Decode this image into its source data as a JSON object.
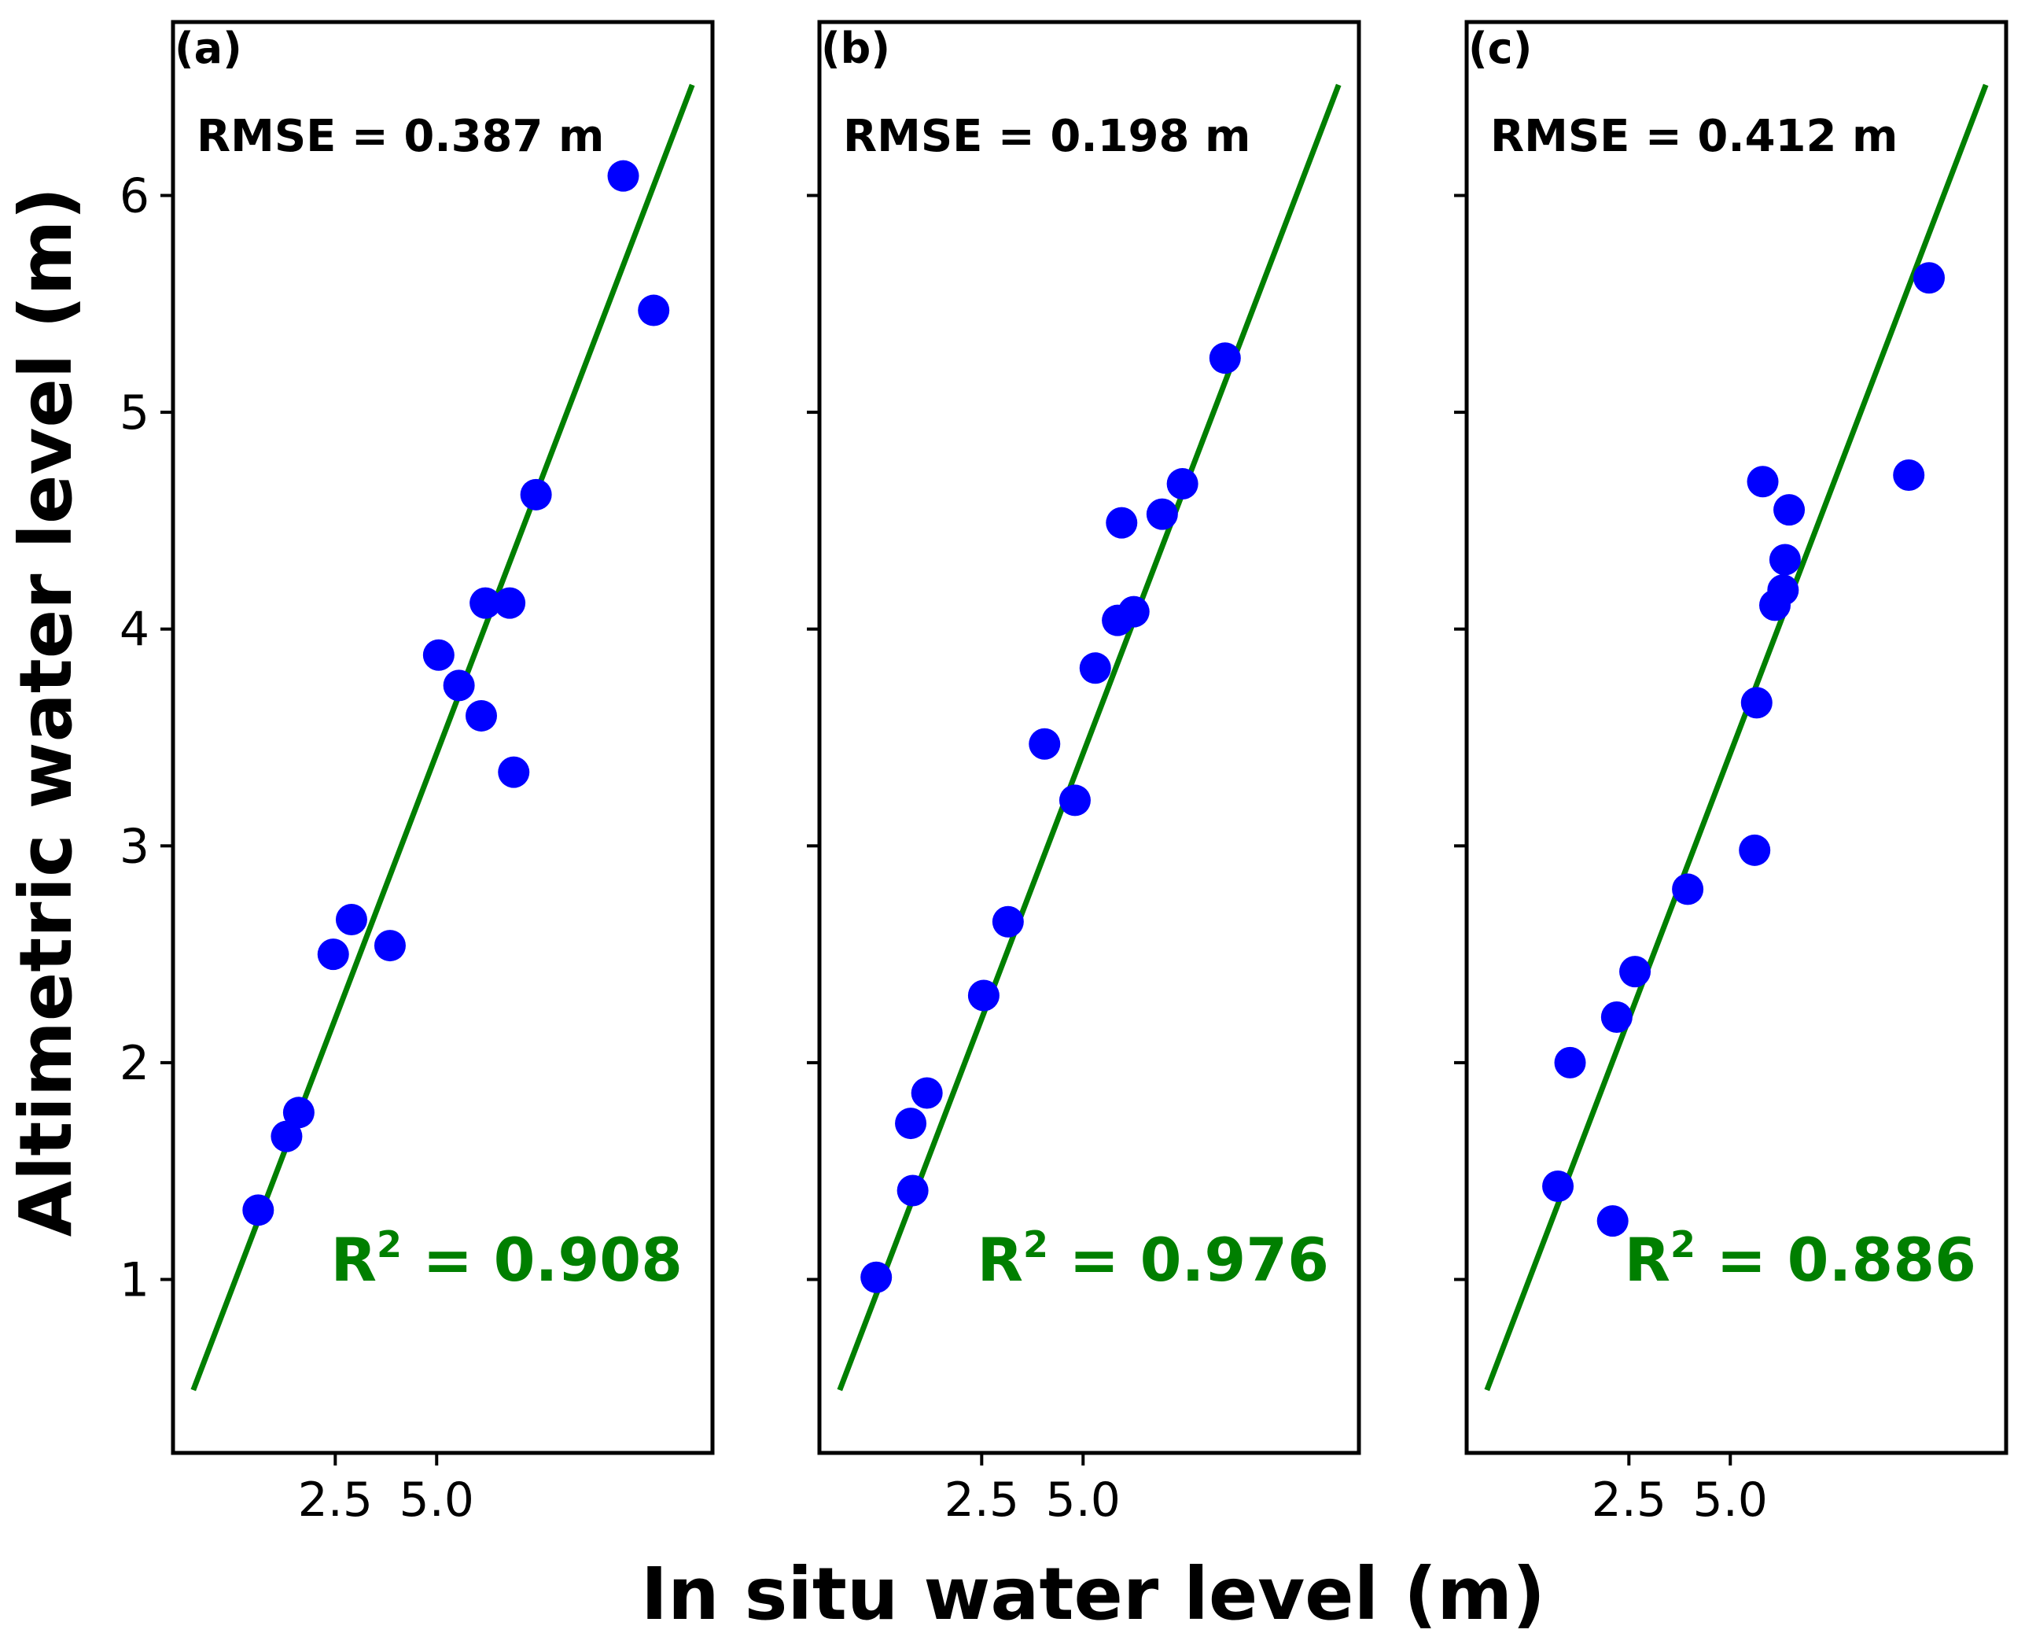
{
  "chart_data": [
    {
      "type": "scatter",
      "panel_label": "(a)",
      "rmse_label": "RMSE = 0.387 m",
      "r2_prefix": "R",
      "r2_sup": "2",
      "r2_value": " = 0.908",
      "xlim": [
        -1.5,
        11.8
      ],
      "ylim": [
        0.2,
        6.8
      ],
      "xticks": [
        2.5,
        5.0
      ],
      "xtick_labels": [
        "2.5",
        "5.0"
      ],
      "yticks": [
        1,
        2,
        3,
        4,
        5,
        6
      ],
      "ytick_labels": [
        "1",
        "2",
        "3",
        "4",
        "5",
        "6"
      ],
      "fit_line": {
        "x": [
          -1.0,
          11.3
        ],
        "y": [
          0.49,
          6.51
        ]
      },
      "points": [
        {
          "x": 0.6,
          "y": 1.32
        },
        {
          "x": 1.3,
          "y": 1.66
        },
        {
          "x": 1.6,
          "y": 1.77
        },
        {
          "x": 2.45,
          "y": 2.5
        },
        {
          "x": 2.9,
          "y": 2.66
        },
        {
          "x": 3.85,
          "y": 2.54
        },
        {
          "x": 5.05,
          "y": 3.88
        },
        {
          "x": 5.55,
          "y": 3.74
        },
        {
          "x": 6.1,
          "y": 3.6
        },
        {
          "x": 6.2,
          "y": 4.12
        },
        {
          "x": 6.8,
          "y": 4.12
        },
        {
          "x": 6.9,
          "y": 3.34
        },
        {
          "x": 7.45,
          "y": 4.62
        },
        {
          "x": 9.6,
          "y": 6.09
        },
        {
          "x": 10.35,
          "y": 5.47
        }
      ]
    },
    {
      "type": "scatter",
      "panel_label": "(b)",
      "rmse_label": "RMSE = 0.198 m",
      "r2_prefix": "R",
      "r2_sup": "2",
      "r2_value": " = 0.976",
      "xlim": [
        -1.5,
        11.8
      ],
      "ylim": [
        0.2,
        6.8
      ],
      "xticks": [
        2.5,
        5.0
      ],
      "xtick_labels": [
        "2.5",
        "5.0"
      ],
      "yticks": [
        1,
        2,
        3,
        4,
        5,
        6
      ],
      "ytick_labels": [],
      "fit_line": {
        "x": [
          -1.0,
          11.3
        ],
        "y": [
          0.49,
          6.51
        ]
      },
      "points": [
        {
          "x": -0.1,
          "y": 1.01
        },
        {
          "x": 0.8,
          "y": 1.41
        },
        {
          "x": 0.75,
          "y": 1.72
        },
        {
          "x": 1.15,
          "y": 1.86
        },
        {
          "x": 2.55,
          "y": 2.31
        },
        {
          "x": 3.15,
          "y": 2.65
        },
        {
          "x": 4.05,
          "y": 3.47
        },
        {
          "x": 4.8,
          "y": 3.21
        },
        {
          "x": 5.3,
          "y": 3.82
        },
        {
          "x": 5.85,
          "y": 4.04
        },
        {
          "x": 6.25,
          "y": 4.08
        },
        {
          "x": 5.95,
          "y": 4.49
        },
        {
          "x": 6.95,
          "y": 4.53
        },
        {
          "x": 7.45,
          "y": 4.67
        },
        {
          "x": 8.5,
          "y": 5.25
        }
      ]
    },
    {
      "type": "scatter",
      "panel_label": "(c)",
      "rmse_label": "RMSE = 0.412 m",
      "r2_prefix": "R",
      "r2_sup": "2",
      "r2_value": " = 0.886",
      "xlim": [
        -1.5,
        11.8
      ],
      "ylim": [
        0.2,
        6.8
      ],
      "xticks": [
        2.5,
        5.0
      ],
      "xtick_labels": [
        "2.5",
        "5.0"
      ],
      "yticks": [
        1,
        2,
        3,
        4,
        5,
        6
      ],
      "ytick_labels": [],
      "fit_line": {
        "x": [
          -1.0,
          11.3
        ],
        "y": [
          0.49,
          6.51
        ]
      },
      "points": [
        {
          "x": 0.75,
          "y": 1.43
        },
        {
          "x": 1.05,
          "y": 2.0
        },
        {
          "x": 2.1,
          "y": 1.27
        },
        {
          "x": 2.2,
          "y": 2.21
        },
        {
          "x": 2.65,
          "y": 2.42
        },
        {
          "x": 3.95,
          "y": 2.8
        },
        {
          "x": 5.6,
          "y": 2.98
        },
        {
          "x": 5.65,
          "y": 3.66
        },
        {
          "x": 5.8,
          "y": 4.68
        },
        {
          "x": 6.1,
          "y": 4.11
        },
        {
          "x": 6.3,
          "y": 4.18
        },
        {
          "x": 6.35,
          "y": 4.32
        },
        {
          "x": 6.45,
          "y": 4.55
        },
        {
          "x": 9.4,
          "y": 4.71
        },
        {
          "x": 9.9,
          "y": 5.62
        }
      ]
    }
  ],
  "xlabel": "In situ water level (m)",
  "ylabel": "Altimetric water level (m)",
  "colors": {
    "points": "#0000ff",
    "fit_line": "#007f00",
    "r2_text": "#007f00"
  }
}
